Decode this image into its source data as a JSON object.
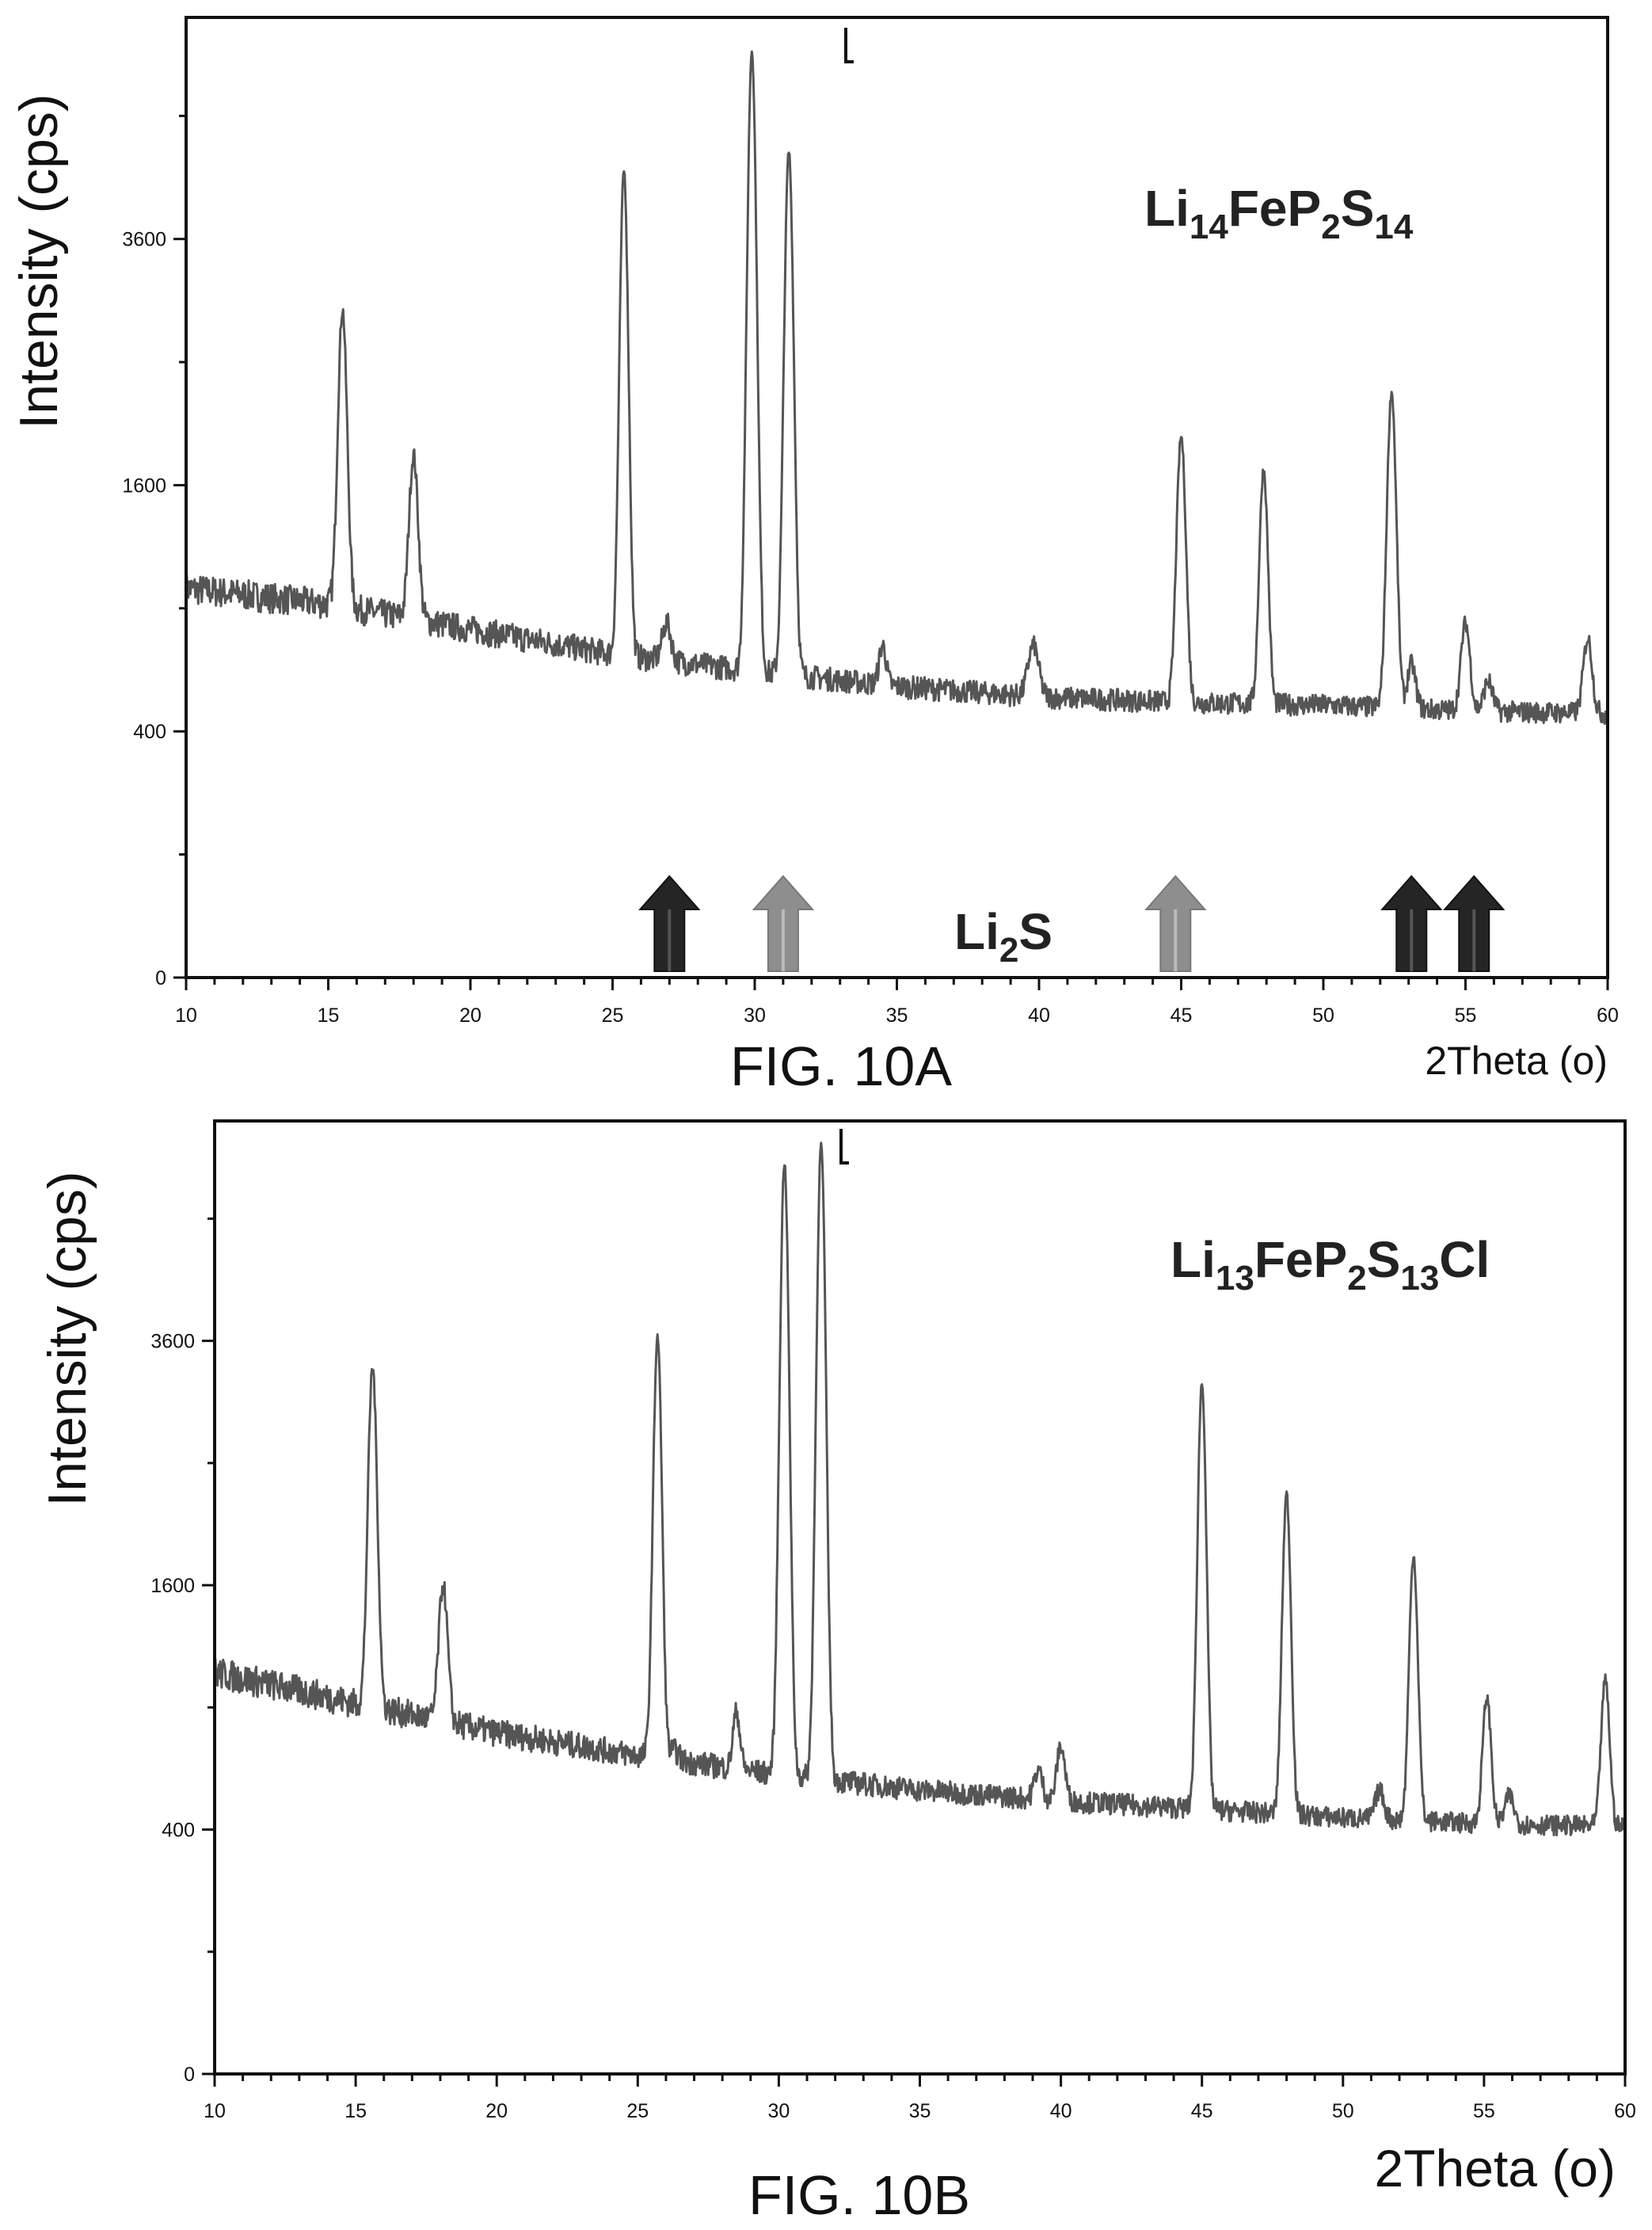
{
  "figures": [
    {
      "caption": "FIG. 10A",
      "compound_label": {
        "parts": [
          [
            "Li",
            ""
          ],
          [
            "14",
            "sub"
          ],
          [
            "FeP",
            ""
          ],
          [
            "2",
            "sub"
          ],
          [
            "S",
            ""
          ],
          [
            "14",
            "sub"
          ]
        ]
      },
      "arrows_label": {
        "parts": [
          [
            "Li",
            ""
          ],
          [
            "2",
            "sub"
          ],
          [
            "S",
            ""
          ]
        ]
      }
    },
    {
      "caption": "FIG. 10B",
      "compound_label": {
        "parts": [
          [
            "Li",
            ""
          ],
          [
            "13",
            "sub"
          ],
          [
            "FeP",
            ""
          ],
          [
            "2",
            "sub"
          ],
          [
            "S",
            ""
          ],
          [
            "13",
            "sub"
          ],
          [
            "Cl",
            ""
          ]
        ]
      }
    }
  ],
  "chart_data": [
    {
      "type": "line",
      "title": "",
      "xlabel": "2Theta (o)",
      "ylabel": "Intensity (cps)",
      "xlim": [
        10,
        60
      ],
      "y_scale": "sqrt",
      "xticks": [
        10,
        15,
        20,
        25,
        30,
        35,
        40,
        45,
        50,
        55,
        60
      ],
      "yticks": [
        0,
        400,
        1600,
        3600
      ],
      "background": {
        "points": [
          [
            10,
            1000
          ],
          [
            15,
            920
          ],
          [
            20,
            800
          ],
          [
            25,
            690
          ],
          [
            30,
            620
          ],
          [
            35,
            560
          ],
          [
            40,
            520
          ],
          [
            45,
            500
          ],
          [
            50,
            490
          ],
          [
            55,
            470
          ],
          [
            60,
            460
          ]
        ]
      },
      "peaks": [
        {
          "x": 15.5,
          "y": 2950,
          "w": 0.15
        },
        {
          "x": 18.0,
          "y": 1800,
          "w": 0.15
        },
        {
          "x": 25.4,
          "y": 4300,
          "w": 0.14
        },
        {
          "x": 26.9,
          "y": 830,
          "w": 0.15
        },
        {
          "x": 29.9,
          "y": 5670,
          "w": 0.15
        },
        {
          "x": 31.2,
          "y": 4500,
          "w": 0.15
        },
        {
          "x": 34.5,
          "y": 730,
          "w": 0.12
        },
        {
          "x": 39.8,
          "y": 730,
          "w": 0.18
        },
        {
          "x": 45.0,
          "y": 1930,
          "w": 0.15
        },
        {
          "x": 47.9,
          "y": 1700,
          "w": 0.14
        },
        {
          "x": 52.4,
          "y": 2260,
          "w": 0.15
        },
        {
          "x": 53.1,
          "y": 650,
          "w": 0.14
        },
        {
          "x": 55.0,
          "y": 830,
          "w": 0.15
        },
        {
          "x": 55.8,
          "y": 580,
          "w": 0.15
        },
        {
          "x": 59.3,
          "y": 760,
          "w": 0.15
        }
      ],
      "arrows": [
        {
          "x": 27.0,
          "shade": "dark",
          "color": "#252525"
        },
        {
          "x": 31.0,
          "shade": "light",
          "color": "#8e8e8e"
        },
        {
          "x": 44.8,
          "shade": "light",
          "color": "#8e8e8e"
        },
        {
          "x": 53.1,
          "shade": "dark",
          "color": "#252525"
        },
        {
          "x": 55.3,
          "shade": "dark",
          "color": "#252525"
        }
      ]
    },
    {
      "type": "line",
      "title": "",
      "xlabel": "2Theta (o)",
      "ylabel": "Intensity (cps)",
      "xlim": [
        10,
        60
      ],
      "y_scale": "sqrt",
      "xticks": [
        10,
        15,
        20,
        25,
        30,
        35,
        40,
        45,
        50,
        55,
        60
      ],
      "yticks": [
        0,
        400,
        1600,
        3600
      ],
      "background": {
        "points": [
          [
            10,
            1080
          ],
          [
            15,
            920
          ],
          [
            20,
            780
          ],
          [
            25,
            680
          ],
          [
            30,
            600
          ],
          [
            35,
            540
          ],
          [
            40,
            500
          ],
          [
            45,
            470
          ],
          [
            50,
            440
          ],
          [
            55,
            420
          ],
          [
            60,
            410
          ]
        ]
      },
      "peaks": [
        {
          "x": 14.1,
          "y": 930,
          "w": 0.1
        },
        {
          "x": 15.6,
          "y": 3350,
          "w": 0.15
        },
        {
          "x": 18.1,
          "y": 1600,
          "w": 0.15
        },
        {
          "x": 25.7,
          "y": 3650,
          "w": 0.14
        },
        {
          "x": 26.3,
          "y": 700,
          "w": 0.15
        },
        {
          "x": 28.5,
          "y": 880,
          "w": 0.12
        },
        {
          "x": 30.2,
          "y": 5560,
          "w": 0.15
        },
        {
          "x": 31.5,
          "y": 5780,
          "w": 0.15
        },
        {
          "x": 39.2,
          "y": 620,
          "w": 0.14
        },
        {
          "x": 40.0,
          "y": 720,
          "w": 0.14
        },
        {
          "x": 45.0,
          "y": 3200,
          "w": 0.14
        },
        {
          "x": 48.0,
          "y": 2250,
          "w": 0.14
        },
        {
          "x": 51.3,
          "y": 540,
          "w": 0.15
        },
        {
          "x": 52.5,
          "y": 1800,
          "w": 0.14
        },
        {
          "x": 55.1,
          "y": 950,
          "w": 0.14
        },
        {
          "x": 55.9,
          "y": 520,
          "w": 0.15
        },
        {
          "x": 59.3,
          "y": 1040,
          "w": 0.14
        }
      ]
    }
  ]
}
